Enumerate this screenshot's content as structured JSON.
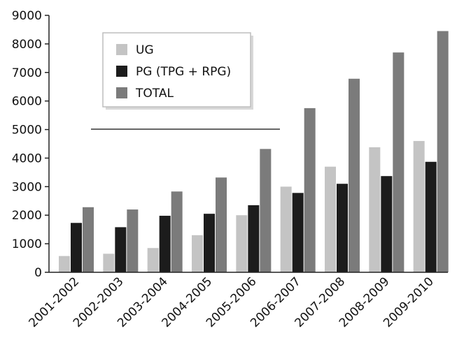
{
  "chart_data": {
    "type": "bar",
    "categories": [
      "2001-2002",
      "2002-2003",
      "2003-2004",
      "2004-2005",
      "2005-2006",
      "2006-2007",
      "2007-2008",
      "2008-2009",
      "2009-2010"
    ],
    "series": [
      {
        "name": "UG",
        "color": "#c4c4c4",
        "values": [
          570,
          650,
          850,
          1300,
          2000,
          3000,
          3700,
          4380,
          4600
        ]
      },
      {
        "name": "PG (TPG + RPG)",
        "color": "#1c1c1c",
        "values": [
          1730,
          1580,
          1980,
          2050,
          2350,
          2780,
          3100,
          3370,
          3870
        ]
      },
      {
        "name": "TOTAL",
        "color": "#7b7b7b",
        "values": [
          2280,
          2200,
          2830,
          3320,
          4320,
          5750,
          6780,
          7700,
          8450
        ]
      }
    ],
    "yticks": [
      "0",
      "1000",
      "2000",
      "3000",
      "4000",
      "5000",
      "6000",
      "7000",
      "8000",
      "9000"
    ],
    "ylim": [
      0,
      9000
    ],
    "grid": false,
    "legend_position": "top-left",
    "title": "",
    "xlabel": "",
    "ylabel": ""
  }
}
